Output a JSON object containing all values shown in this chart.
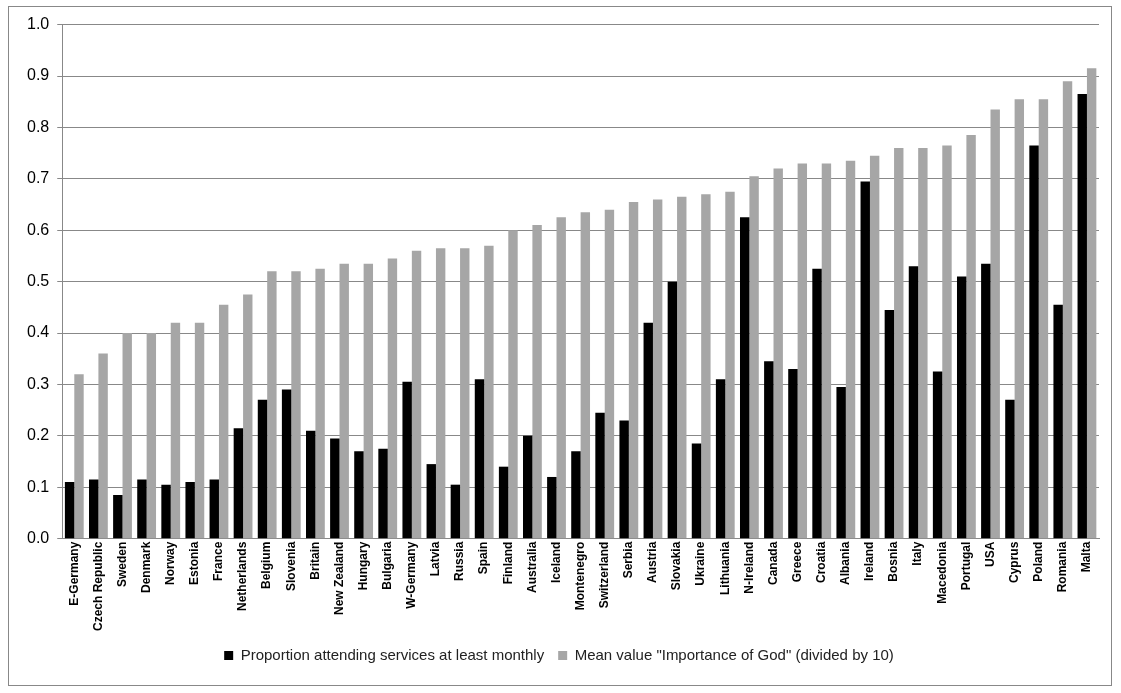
{
  "chart_data": {
    "type": "bar",
    "categories": [
      "E-Germany",
      "Czech Republic",
      "Sweden",
      "Denmark",
      "Norway",
      "Estonia",
      "France",
      "Netherlands",
      "Belgium",
      "Slovenia",
      "Britain",
      "New Zealand",
      "Hungary",
      "Bulgaria",
      "W-Germany",
      "Latvia",
      "Russia",
      "Spain",
      "Finland",
      "Australia",
      "Iceland",
      "Montenegro",
      "Switzerland",
      "Serbia",
      "Austria",
      "Slovakia",
      "Ukraine",
      "Lithuania",
      "N-Ireland",
      "Canada",
      "Greece",
      "Croatia",
      "Albania",
      "Ireland",
      "Bosnia",
      "Italy",
      "Macedonia",
      "Portugal",
      "USA",
      "Cyprus",
      "Poland",
      "Romania",
      "Malta"
    ],
    "series": [
      {
        "name": "Proportion attending services at least monthly",
        "color": "#000000",
        "values": [
          0.11,
          0.115,
          0.085,
          0.115,
          0.105,
          0.11,
          0.115,
          0.215,
          0.27,
          0.29,
          0.21,
          0.195,
          0.17,
          0.175,
          0.305,
          0.145,
          0.105,
          0.31,
          0.14,
          0.2,
          0.12,
          0.17,
          0.245,
          0.23,
          0.42,
          0.5,
          0.185,
          0.31,
          0.625,
          0.345,
          0.33,
          0.525,
          0.295,
          0.695,
          0.445,
          0.53,
          0.325,
          0.51,
          0.535,
          0.27,
          0.765,
          0.455,
          0.865
        ]
      },
      {
        "name": "Mean value \"Importance of God\" (divided by 10)",
        "color": "#a6a6a6",
        "values": [
          0.32,
          0.36,
          0.4,
          0.4,
          0.42,
          0.42,
          0.455,
          0.475,
          0.52,
          0.52,
          0.525,
          0.535,
          0.535,
          0.545,
          0.56,
          0.565,
          0.565,
          0.57,
          0.6,
          0.61,
          0.625,
          0.635,
          0.64,
          0.655,
          0.66,
          0.665,
          0.67,
          0.675,
          0.705,
          0.72,
          0.73,
          0.73,
          0.735,
          0.745,
          0.76,
          0.76,
          0.765,
          0.785,
          0.835,
          0.855,
          0.855,
          0.89,
          0.915
        ]
      }
    ],
    "ylim": [
      0,
      1
    ],
    "yticks": [
      {
        "value": 0,
        "label": "0.0"
      },
      {
        "value": 0.1,
        "label": "0.1"
      },
      {
        "value": 0.2,
        "label": "0.2"
      },
      {
        "value": 0.3,
        "label": "0.3"
      },
      {
        "value": 0.4,
        "label": "0.4"
      },
      {
        "value": 0.5,
        "label": "0.5"
      },
      {
        "value": 0.6,
        "label": "0.6"
      },
      {
        "value": 0.7,
        "label": "0.7"
      },
      {
        "value": 0.8,
        "label": "0.8"
      },
      {
        "value": 0.9,
        "label": "0.9"
      },
      {
        "value": 1,
        "label": "1.0"
      }
    ],
    "grid": "y",
    "legend": "bottom"
  }
}
